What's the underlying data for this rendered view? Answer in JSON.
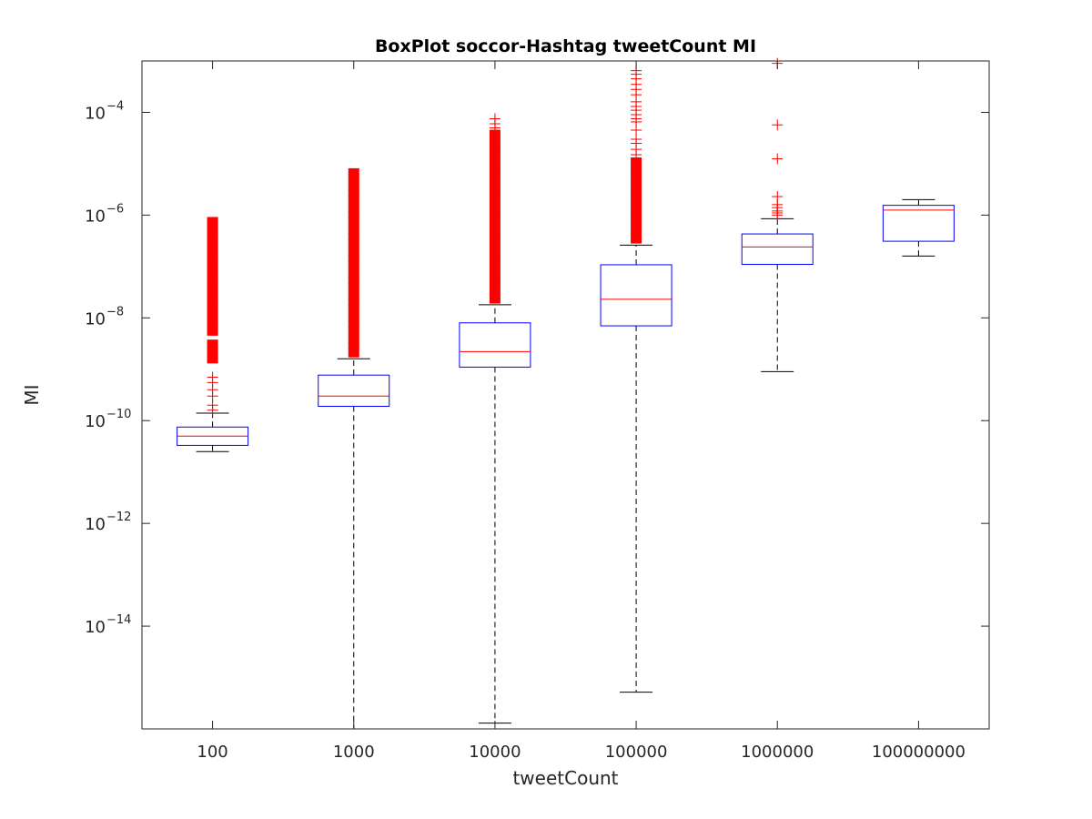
{
  "chart_data": {
    "type": "box",
    "title": "BoxPlot soccor-Hashtag tweetCount MI",
    "xlabel": "tweetCount",
    "ylabel": "MI",
    "yscale": "log",
    "ylim": [
      1e-16,
      0.001
    ],
    "ytick_exponents": [
      -14,
      -12,
      -10,
      -8,
      -6,
      -4
    ],
    "categories": [
      "100",
      "1000",
      "10000",
      "100000",
      "1000000",
      "100000000"
    ],
    "boxes": [
      {
        "category": "100",
        "whisker_low": 2.5e-11,
        "q1": 3.3e-11,
        "median": 5e-11,
        "q3": 7.5e-11,
        "whisker_high": 1.4e-10,
        "outliers": [
          1.6e-10,
          2e-10,
          3e-10,
          4e-10,
          5.5e-10,
          7e-10
        ],
        "outlier_ranges": [
          [
            1.3e-09,
            3.7e-09
          ],
          [
            4.5e-09,
            9e-07
          ]
        ]
      },
      {
        "category": "1000",
        "whisker_low": 1e-16,
        "q1": 1.9e-10,
        "median": 3e-10,
        "q3": 7.7e-10,
        "whisker_high": 1.6e-09,
        "outliers": [],
        "outlier_ranges": [
          [
            1.7e-09,
            8e-06
          ]
        ]
      },
      {
        "category": "10000",
        "whisker_low": 1.3e-16,
        "q1": 1.1e-09,
        "median": 2.2e-09,
        "q3": 8e-09,
        "whisker_high": 1.8e-08,
        "outliers": [
          5e-05,
          6e-05,
          7.5e-05
        ],
        "outlier_ranges": [
          [
            1.9e-08,
            4.5e-05
          ]
        ]
      },
      {
        "category": "100000",
        "whisker_low": 5.2e-16,
        "q1": 7e-09,
        "median": 2.3e-08,
        "q3": 1.08e-07,
        "whisker_high": 2.6e-07,
        "outliers": [
          1.5e-05,
          1.9e-05,
          2.5e-05,
          3e-05,
          4.5e-05,
          6.5e-05,
          7.5e-05,
          9e-05,
          0.00011,
          0.00013,
          0.00016,
          0.00022,
          0.00028,
          0.00035,
          0.00045,
          0.00055,
          0.00065
        ],
        "outlier_ranges": [
          [
            2.8e-07,
            1.3e-05
          ]
        ]
      },
      {
        "category": "1000000",
        "whisker_low": 9e-10,
        "q1": 1.1e-07,
        "median": 2.4e-07,
        "q3": 4.3e-07,
        "whisker_high": 8.5e-07,
        "outliers": [
          1e-06,
          1.1e-06,
          1.2e-06,
          1.4e-06,
          1.6e-06,
          2.3e-06,
          1.25e-05,
          5.7e-05,
          0.0009
        ],
        "outlier_ranges": []
      },
      {
        "category": "100000000",
        "whisker_low": 1.6e-07,
        "q1": 3.1e-07,
        "median": 1.25e-06,
        "q3": 1.55e-06,
        "whisker_high": 2e-06,
        "outliers": [],
        "outlier_ranges": []
      }
    ],
    "colors": {
      "box": "#0000ff",
      "median": "#ff0000",
      "whisker": "#000000",
      "outlier": "#ff0000",
      "axis": "#262626"
    },
    "grid": false,
    "legend": "none"
  }
}
